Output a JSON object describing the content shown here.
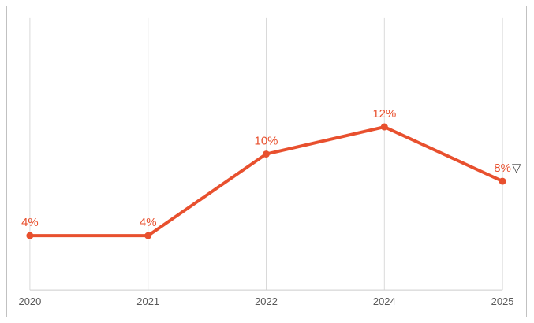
{
  "chart_data": {
    "type": "line",
    "title": "",
    "xlabel": "",
    "ylabel": "",
    "categories": [
      "2020",
      "2021",
      "2022",
      "2024",
      "2025"
    ],
    "values": [
      4,
      4,
      10,
      12,
      8
    ],
    "point_labels": [
      "4%",
      "4%",
      "10%",
      "12%",
      "8%"
    ],
    "last_point_annotation": "▽",
    "ylim": [
      0,
      20
    ],
    "grid": "vertical-gridlines-only",
    "legend": "none",
    "colors": {
      "line": "#e8502e",
      "marker": "#e8502e",
      "point_label": "#e8502e",
      "tick_label": "#595959",
      "gridline": "#d9d9d9",
      "axis_line": "#cccccc",
      "annotation": "#3d3d3d",
      "frame_border": "#c1c1c1",
      "background": "#ffffff"
    }
  }
}
